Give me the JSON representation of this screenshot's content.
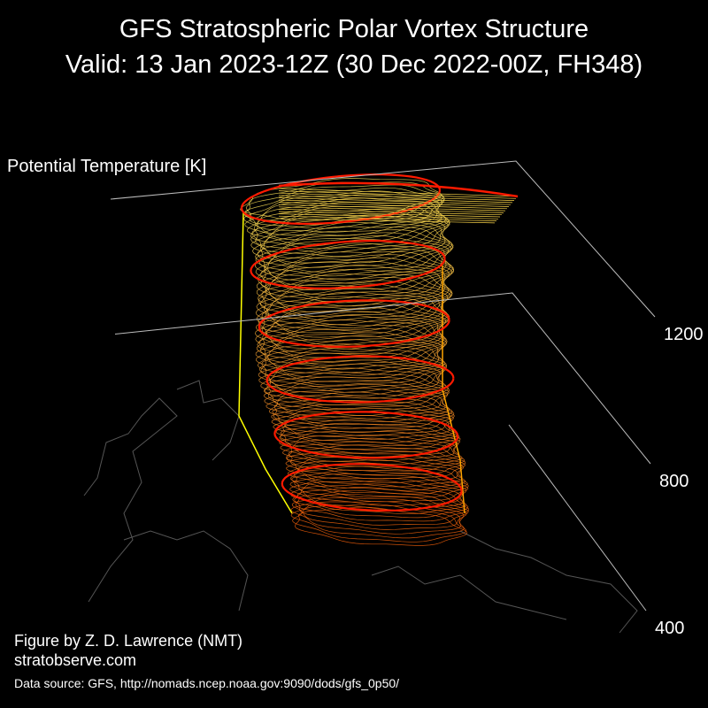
{
  "chart_data": {
    "type": "isentropic-3d",
    "title": "GFS Stratospheric Polar Vortex Structure",
    "subtitle": "Valid: 13 Jan 2023-12Z  (30 Dec 2022-00Z, FH348)",
    "z_label": "Potential Temperature [K]",
    "zlim": [
      400,
      1200
    ],
    "zticks": [
      400,
      800,
      1200
    ],
    "grid": true,
    "credit": "Figure by Z. D. Lawrence (NMT)",
    "website": "stratobserve.com",
    "source": "Data source: GFS, http://nomads.ncep.noaa.gov:9090/dods/gfs_0p50/"
  }
}
